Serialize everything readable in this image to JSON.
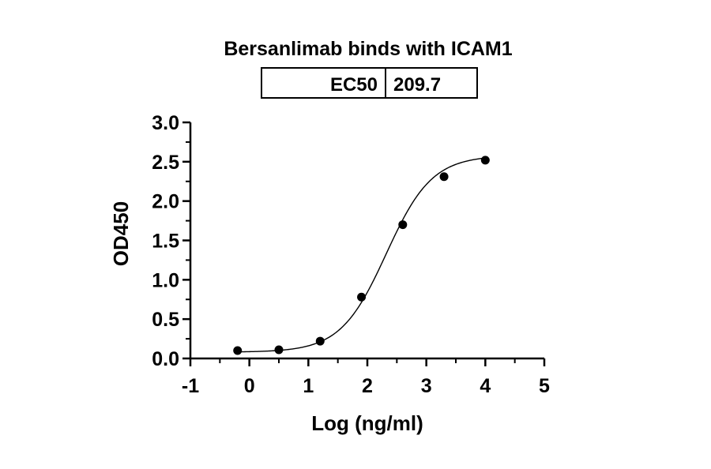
{
  "chart_data": {
    "type": "scatter",
    "title": "Bersanlimab binds with ICAM1",
    "xlabel": "Log (ng/ml)",
    "ylabel": "OD450",
    "xlim": [
      -1,
      5
    ],
    "ylim": [
      0,
      3.0
    ],
    "x_ticks": [
      "-1",
      "0",
      "1",
      "2",
      "3",
      "4",
      "5"
    ],
    "y_ticks": [
      "0.0",
      "0.5",
      "1.0",
      "1.5",
      "2.0",
      "2.5",
      "3.0"
    ],
    "grid": false,
    "legend": "none",
    "points": [
      {
        "x": -0.2,
        "y": 0.1
      },
      {
        "x": 0.5,
        "y": 0.11
      },
      {
        "x": 1.2,
        "y": 0.22
      },
      {
        "x": 1.9,
        "y": 0.78
      },
      {
        "x": 2.6,
        "y": 1.7
      },
      {
        "x": 3.3,
        "y": 2.31
      },
      {
        "x": 4.0,
        "y": 2.52
      }
    ],
    "fit_curve": {
      "model": "4PL",
      "bottom": 0.08,
      "top": 2.58,
      "logEC50": 2.32,
      "hill": 1.12
    },
    "results_table": {
      "label": "EC50",
      "value": "209.7"
    },
    "colors": {
      "points": "#000000",
      "curve": "#000000",
      "axes": "#000000"
    }
  }
}
